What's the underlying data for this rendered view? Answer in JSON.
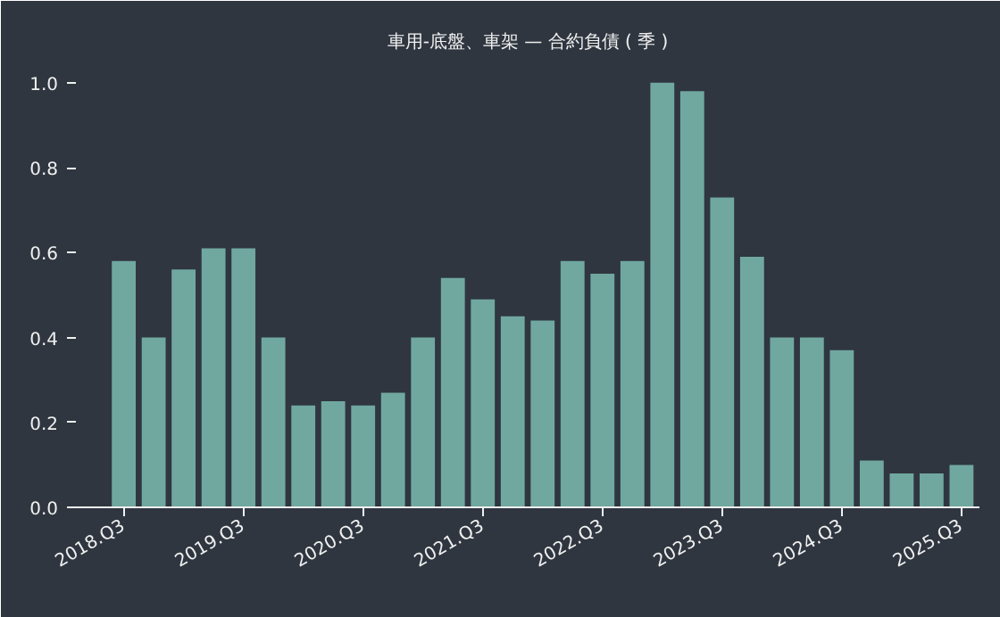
{
  "chart_data": {
    "type": "bar",
    "title": "車用-底盤、車架 — 合約負債 ( 季 )",
    "categories": [
      "2018.Q3",
      null,
      null,
      null,
      "2019.Q3",
      null,
      null,
      null,
      "2020.Q3",
      null,
      null,
      null,
      "2021.Q3",
      null,
      null,
      null,
      "2022.Q3",
      null,
      null,
      null,
      "2023.Q3",
      null,
      null,
      null,
      "2024.Q3",
      null,
      null,
      null,
      "2025.Q3"
    ],
    "values": [
      0.58,
      0.4,
      0.56,
      0.61,
      0.61,
      0.4,
      0.24,
      0.25,
      0.24,
      0.27,
      0.4,
      0.54,
      0.49,
      0.45,
      0.44,
      0.58,
      0.55,
      0.58,
      1.0,
      0.98,
      0.73,
      0.59,
      0.4,
      0.4,
      0.37,
      0.11,
      0.08,
      0.08,
      0.1
    ],
    "color": "#70a8a0",
    "ylim": [
      0,
      1.05
    ],
    "yticks": [
      {
        "value": 0,
        "label": "0.0"
      },
      {
        "value": 0.2,
        "label": "0.2"
      },
      {
        "value": 0.4,
        "label": "0.4"
      },
      {
        "value": 0.6,
        "label": "0.6"
      },
      {
        "value": 0.8,
        "label": "0.8"
      },
      {
        "value": 1.0,
        "label": "1.0"
      }
    ],
    "grid": false
  }
}
